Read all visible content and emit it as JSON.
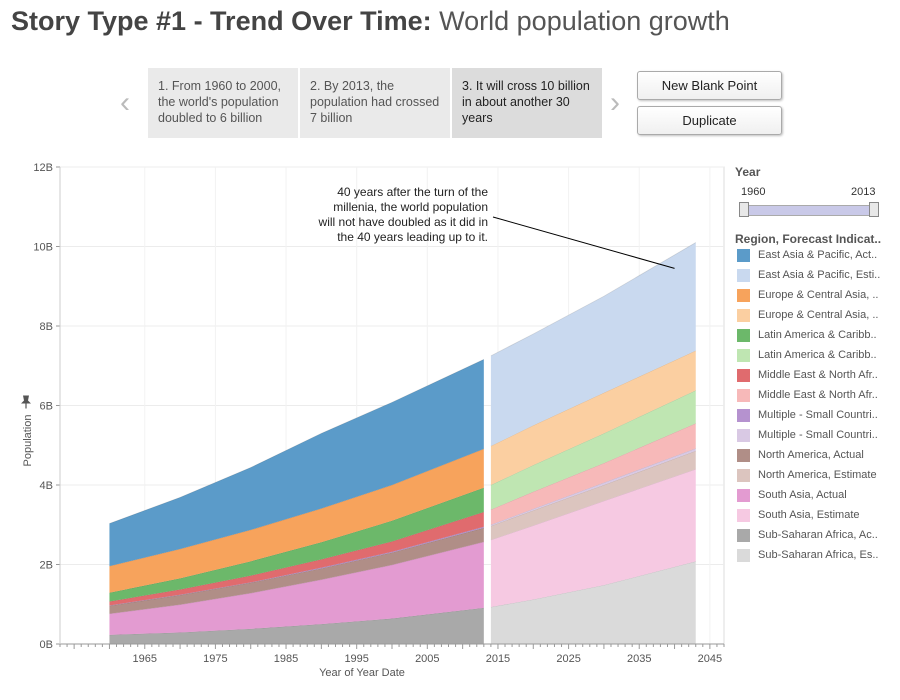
{
  "header": {
    "title_bold": "Story Type #1 - Trend Over Time:",
    "title_rest": " World population growth"
  },
  "story": {
    "points": [
      {
        "label": "1. From 1960 to 2000, the world's population doubled to 6 billion"
      },
      {
        "label": "2. By 2013, the population had crossed 7 billion"
      },
      {
        "label": "3. It will cross 10 billion in about another 30 years"
      }
    ],
    "active_index": 2,
    "prev_arrow": "‹",
    "next_arrow": "›",
    "new_blank_point_label": "New Blank Point",
    "duplicate_label": "Duplicate"
  },
  "filter": {
    "title": "Year",
    "min_label": "1960",
    "max_label": "2013"
  },
  "legend": {
    "title": "Region, Forecast Indicat..",
    "items": [
      {
        "label": "East Asia & Pacific, Act..",
        "color": "#5b9bc9"
      },
      {
        "label": "East Asia & Pacific, Esti..",
        "color": "#c9d9ef"
      },
      {
        "label": "Europe & Central Asia, ..",
        "color": "#f7a35c"
      },
      {
        "label": "Europe & Central Asia, ..",
        "color": "#fbcfa1"
      },
      {
        "label": "Latin America & Caribb..",
        "color": "#6cb86a"
      },
      {
        "label": "Latin America & Caribb..",
        "color": "#bfe6b2"
      },
      {
        "label": "Middle East & North Afr..",
        "color": "#e06b6e"
      },
      {
        "label": "Middle East & North Afr..",
        "color": "#f7b9b9"
      },
      {
        "label": "Multiple - Small Countri..",
        "color": "#b592cf"
      },
      {
        "label": "Multiple - Small Countri..",
        "color": "#d9c9e4"
      },
      {
        "label": "North America, Actual",
        "color": "#b08e87"
      },
      {
        "label": "North America, Estimate",
        "color": "#dcc5bf"
      },
      {
        "label": "South Asia, Actual",
        "color": "#e39bd1"
      },
      {
        "label": "South Asia, Estimate",
        "color": "#f6c9e2"
      },
      {
        "label": "Sub-Saharan Africa, Ac..",
        "color": "#a9a9a9"
      },
      {
        "label": "Sub-Saharan Africa, Es..",
        "color": "#dadada"
      }
    ]
  },
  "annotation": {
    "lines": [
      "40 years after the turn of the",
      "millenia, the world population",
      "will not have doubled as it did in",
      "the 40 years leading up to it."
    ],
    "target": {
      "x": 2040,
      "y": 9.45
    }
  },
  "chart_data": {
    "type": "area",
    "xlabel": "Year of Year Date",
    "ylabel": "Population",
    "ylim": [
      0,
      12
    ],
    "y_unit": "B",
    "yticks": [
      0,
      2,
      4,
      6,
      8,
      10,
      12
    ],
    "ytick_labels": [
      "0B",
      "2B",
      "4B",
      "6B",
      "8B",
      "10B",
      "12B"
    ],
    "xlim": [
      1953,
      2047
    ],
    "xticks": [
      1965,
      1975,
      1985,
      1995,
      2005,
      2015,
      2025,
      2035,
      2045
    ],
    "grid": true,
    "legend_position": "right",
    "stacked": true,
    "segments": [
      {
        "name": "Actual",
        "x": [
          1960,
          1970,
          1980,
          1990,
          2000,
          2013
        ],
        "series": [
          {
            "name": "Sub-Saharan Africa, Actual",
            "color": "#a9a9a9",
            "cumulative": [
              0.23,
              0.29,
              0.38,
              0.5,
              0.64,
              0.91
            ]
          },
          {
            "name": "South Asia, Actual",
            "color": "#e39bd1",
            "cumulative": [
              0.76,
              0.99,
              1.28,
              1.62,
              1.99,
              2.57
            ]
          },
          {
            "name": "North America, Actual",
            "color": "#b08e87",
            "cumulative": [
              0.96,
              1.23,
              1.54,
              1.9,
              2.3,
              2.92
            ]
          },
          {
            "name": "Multiple - Small Countries, Actual",
            "color": "#b592cf",
            "cumulative": [
              0.97,
              1.24,
              1.55,
              1.92,
              2.32,
              2.95
            ]
          },
          {
            "name": "Middle East & North Africa, Actual",
            "color": "#e06b6e",
            "cumulative": [
              1.07,
              1.37,
              1.72,
              2.13,
              2.58,
              3.32
            ]
          },
          {
            "name": "Latin America & Caribbean, Actual",
            "color": "#6cb86a",
            "cumulative": [
              1.29,
              1.65,
              2.08,
              2.56,
              3.1,
              3.93
            ]
          },
          {
            "name": "Europe & Central Asia, Actual",
            "color": "#f7a35c",
            "cumulative": [
              1.96,
              2.39,
              2.87,
              3.41,
              4.0,
              4.91
            ]
          },
          {
            "name": "East Asia & Pacific, Actual",
            "color": "#5b9bc9",
            "cumulative": [
              3.03,
              3.69,
              4.44,
              5.3,
              6.08,
              7.16
            ]
          }
        ]
      },
      {
        "name": "Estimate",
        "x": [
          2014,
          2020,
          2030,
          2043
        ],
        "series": [
          {
            "name": "Sub-Saharan Africa, Estimate",
            "color": "#dadada",
            "cumulative": [
              0.93,
              1.12,
              1.48,
              2.08
            ]
          },
          {
            "name": "South Asia, Estimate",
            "color": "#f6c9e2",
            "cumulative": [
              2.62,
              2.98,
              3.6,
              4.4
            ]
          },
          {
            "name": "North America, Estimate",
            "color": "#dcc5bf",
            "cumulative": [
              2.97,
              3.36,
              4.0,
              4.86
            ]
          },
          {
            "name": "Multiple - Small Countries, Estimate",
            "color": "#d9c9e4",
            "cumulative": [
              3.0,
              3.4,
              4.06,
              4.92
            ]
          },
          {
            "name": "Middle East & North Africa, Estimate",
            "color": "#f7b9b9",
            "cumulative": [
              3.38,
              3.83,
              4.55,
              5.55
            ]
          },
          {
            "name": "Latin America & Caribbean, Estimate",
            "color": "#bfe6b2",
            "cumulative": [
              4.0,
              4.5,
              5.3,
              6.38
            ]
          },
          {
            "name": "Europe & Central Asia, Estimate",
            "color": "#fbcfa1",
            "cumulative": [
              4.98,
              5.5,
              6.32,
              7.38
            ]
          },
          {
            "name": "East Asia & Pacific, Estimate",
            "color": "#c9d9ef",
            "cumulative": [
              7.25,
              7.8,
              8.75,
              10.1
            ]
          }
        ]
      }
    ]
  }
}
